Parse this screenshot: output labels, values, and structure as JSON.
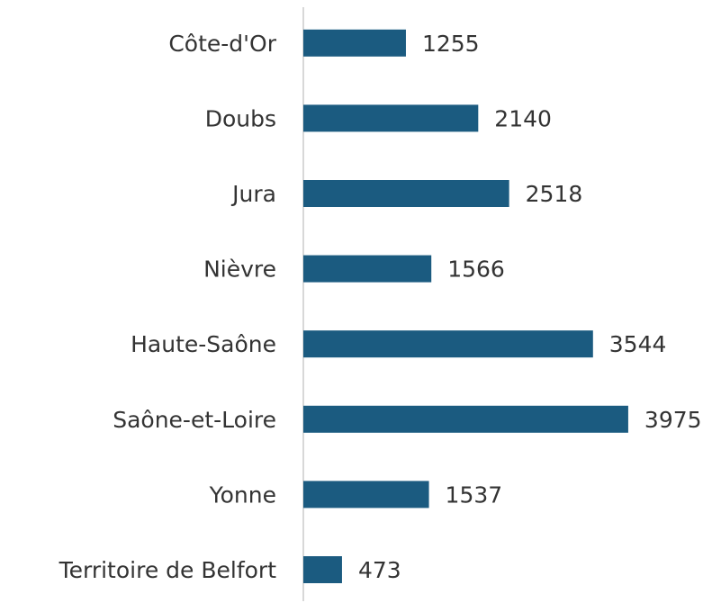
{
  "chart_data": {
    "type": "bar",
    "orientation": "horizontal",
    "categories": [
      "Côte-d'Or",
      "Doubs",
      "Jura",
      "Nièvre",
      "Haute-Saône",
      "Saône-et-Loire",
      "Yonne",
      "Territoire de Belfort"
    ],
    "values": [
      1255,
      2140,
      2518,
      1566,
      3544,
      3975,
      1537,
      473
    ],
    "color": "#1b5b80",
    "xlim": [
      0,
      5000
    ]
  }
}
